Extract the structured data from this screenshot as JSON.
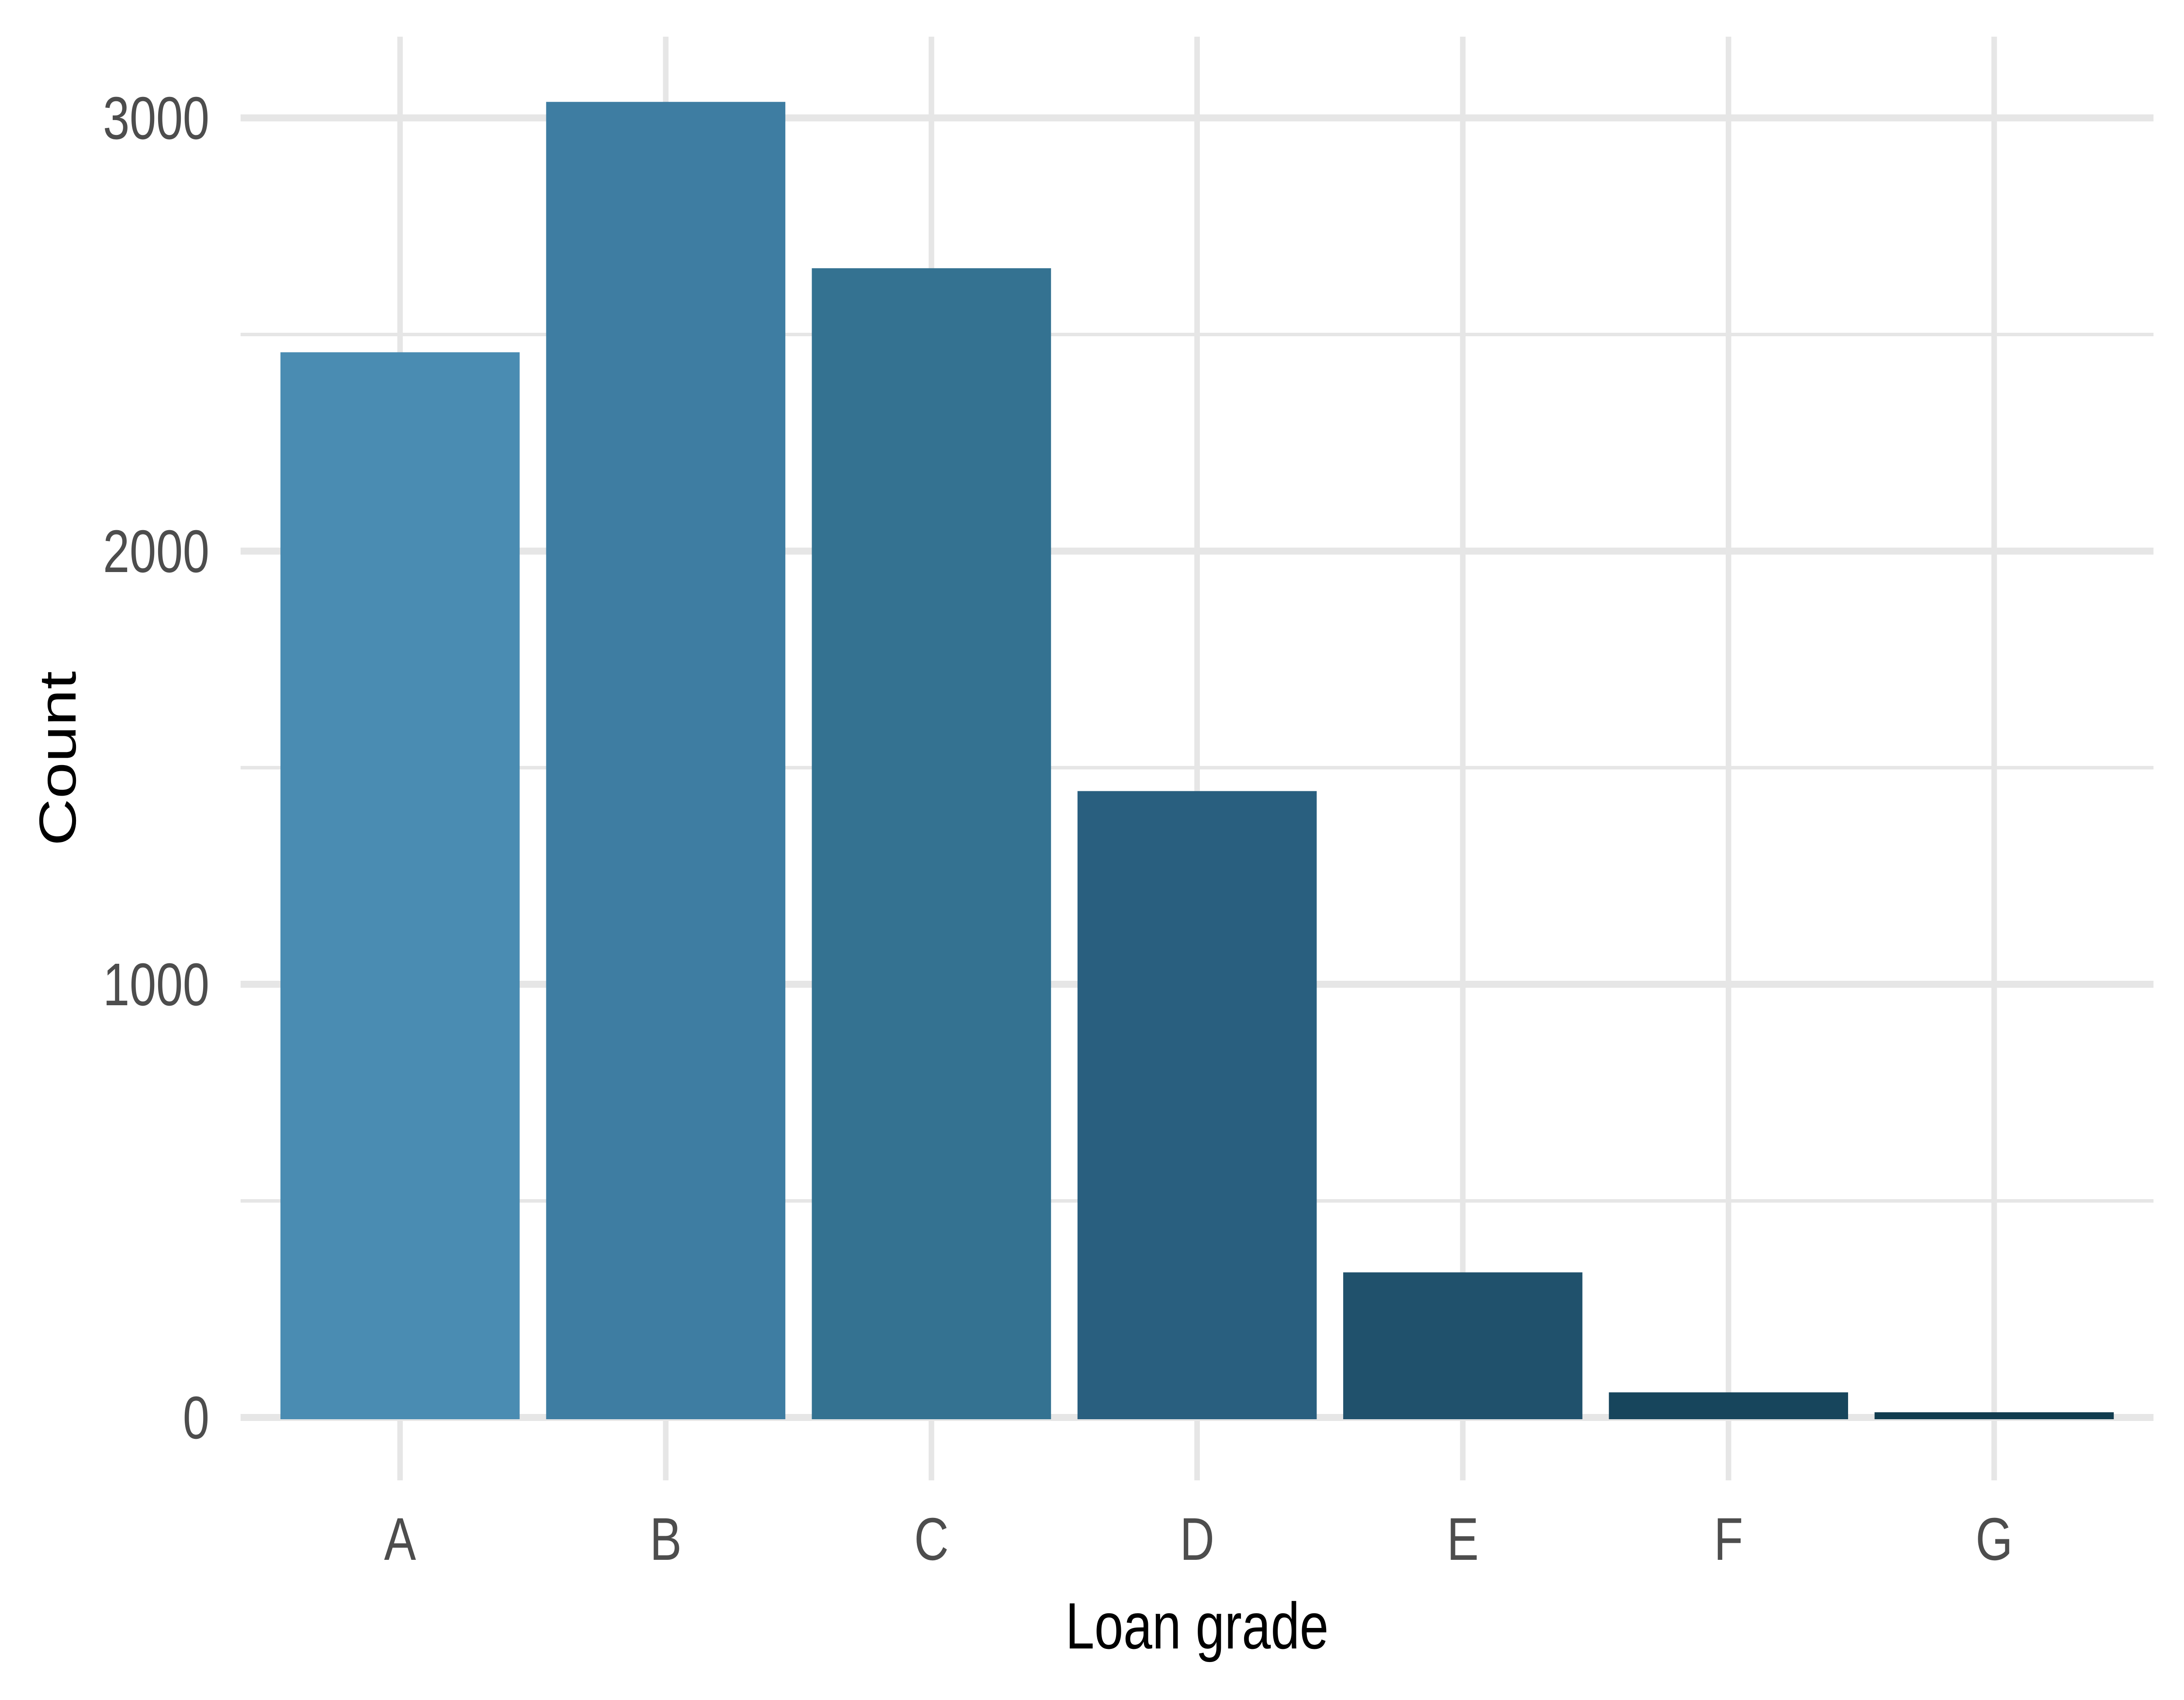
{
  "figure": {
    "background": "#FFFFFF"
  },
  "chart_data": {
    "type": "bar",
    "title": "",
    "categories": [
      "A",
      "B",
      "C",
      "D",
      "E",
      "F",
      "G"
    ],
    "values": [
      2459,
      3037,
      2653,
      1446,
      335,
      58,
      12
    ],
    "xlabel": "Loan grade",
    "ylabel": "Count",
    "y_ticks": [
      0,
      1000,
      2000,
      3000
    ],
    "y_tick_labels": [
      "0",
      "1000",
      "2000",
      "3000"
    ],
    "y_minor_gridlines": [
      500,
      1500,
      2500
    ],
    "ylim": [
      0,
      3190
    ],
    "grid": "on",
    "legend": "none",
    "bar_colors": [
      "#4A8CB2",
      "#3E7DA2",
      "#347291",
      "#295F7F",
      "#20516C",
      "#17455C",
      "#113C4F"
    ],
    "grid_color": "#E6E6E6",
    "tick_label_color": "#4D4D4D",
    "axis_title_color": "#000000"
  }
}
